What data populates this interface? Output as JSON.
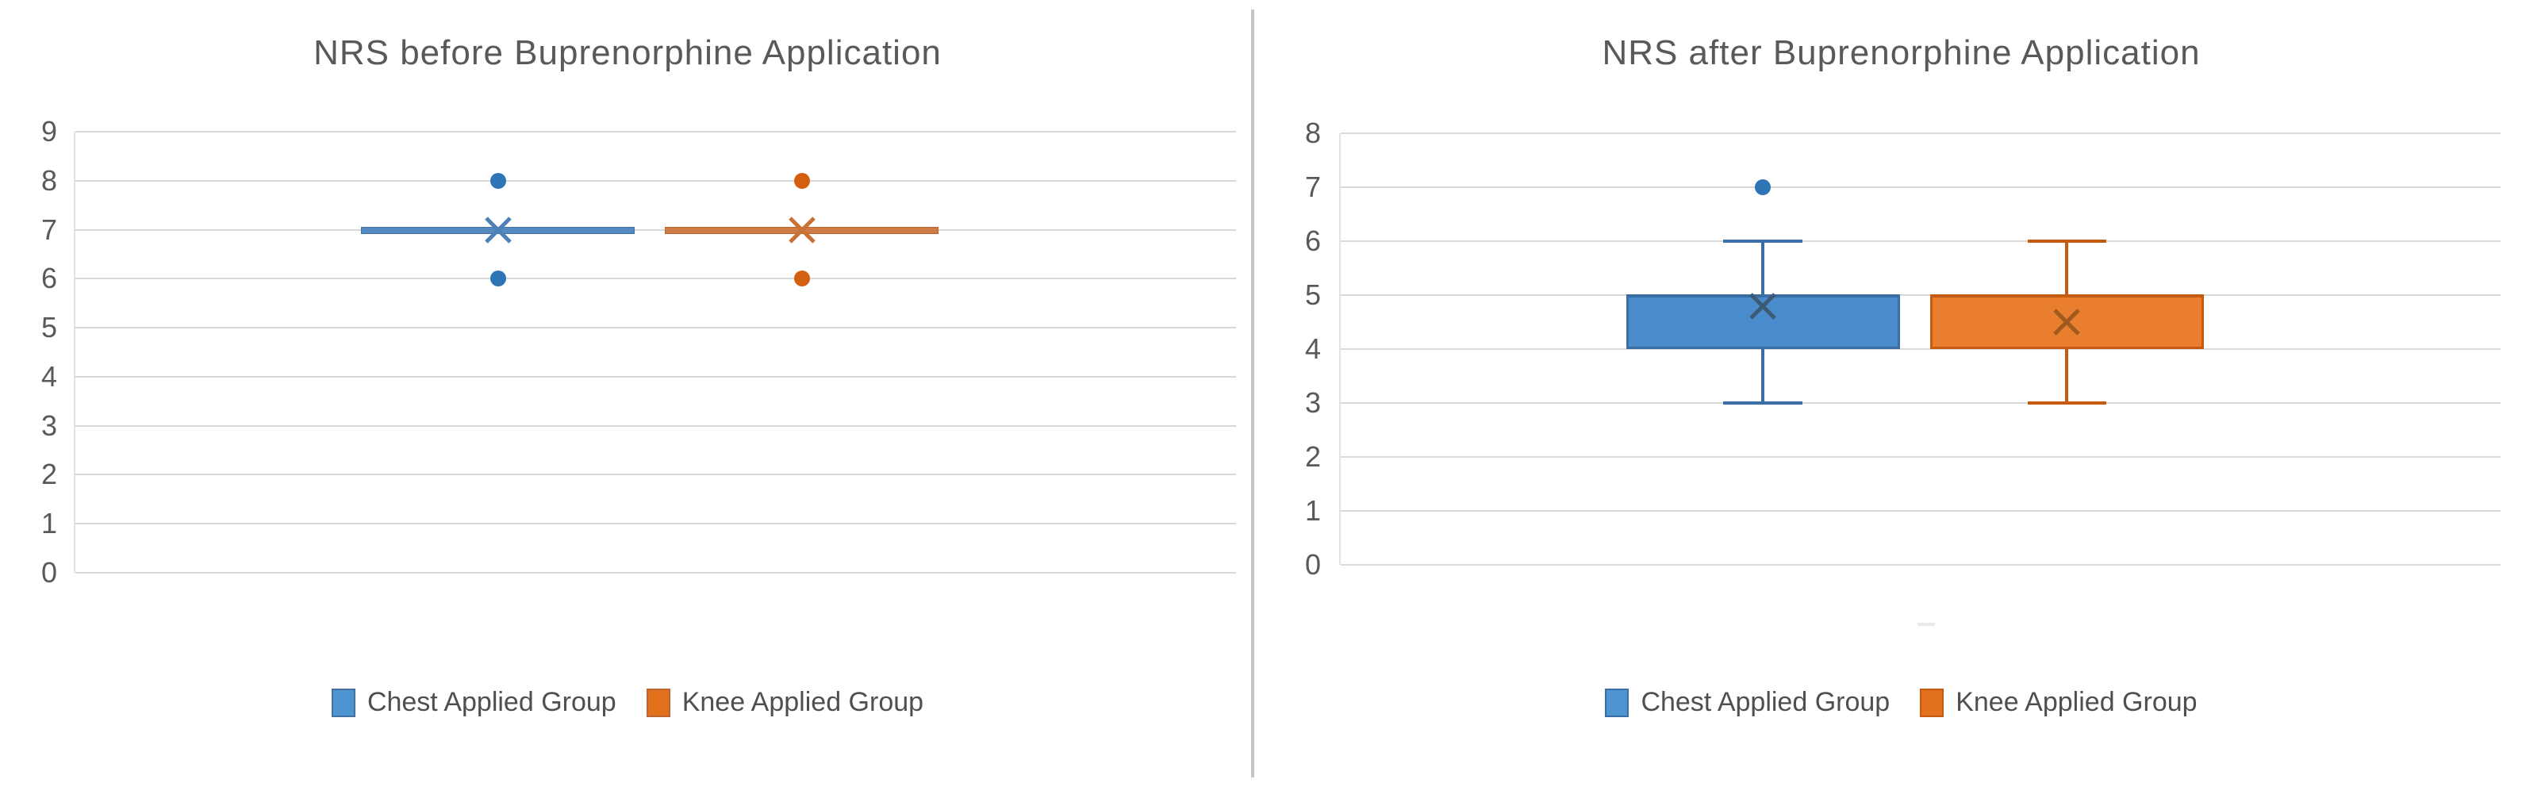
{
  "figure": {
    "background": "#ffffff",
    "divider_color": "#c6c6c6",
    "gridline_color": "#d9d9d9",
    "title_color": "#595959",
    "tick_label_color": "#595959",
    "legend_label_color": "#4f4f4f"
  },
  "chart_data": [
    {
      "type": "boxplot",
      "title": "NRS before Buprenorphine Application",
      "xlabel": "",
      "ylabel": "",
      "ylim": [
        0,
        9
      ],
      "yticks": [
        9,
        8,
        7,
        6,
        5,
        4,
        3,
        2,
        1,
        0
      ],
      "grid": true,
      "legend_position": "bottom",
      "series": [
        {
          "name": "Chest Applied Group",
          "min": 7,
          "q1": 7,
          "median": 7,
          "q3": 7,
          "max": 7,
          "mean": 7,
          "outliers": [
            8,
            6
          ],
          "fill": "#548abf",
          "edge": "#41719c",
          "outlier_color": "#2e75b6",
          "mean_color": "#4d80b4",
          "swatch": "#4e94d0"
        },
        {
          "name": "Knee Applied Group",
          "min": 7,
          "q1": 7,
          "median": 7,
          "q3": 7,
          "max": 7,
          "mean": 7,
          "outliers": [
            8,
            6
          ],
          "fill": "#cd7a44",
          "edge": "#bf6430",
          "outlier_color": "#d45f10",
          "mean_color": "#c87137",
          "swatch": "#e2711e"
        }
      ]
    },
    {
      "type": "boxplot",
      "title": "NRS after Buprenorphine Application",
      "xlabel": "",
      "ylabel": "",
      "ylim": [
        0,
        8
      ],
      "yticks": [
        8,
        7,
        6,
        5,
        4,
        3,
        2,
        1,
        0
      ],
      "grid": true,
      "legend_position": "bottom",
      "category_tick_x_frac": 0.505,
      "series": [
        {
          "name": "Chest Applied Group",
          "min": 3,
          "q1": 4,
          "median": 5,
          "q3": 5,
          "max": 6,
          "mean": 4.8,
          "outliers": [
            7
          ],
          "fill": "#4a8ccb",
          "edge": "#3a6ea5",
          "outlier_color": "#2e75b6",
          "mean_color": "#3c5a76",
          "swatch": "#4e94d0"
        },
        {
          "name": "Knee Applied Group",
          "min": 3,
          "q1": 4,
          "median": 5,
          "q3": 5,
          "max": 6,
          "mean": 4.5,
          "outliers": [],
          "fill": "#e87e2e",
          "edge": "#c55a11",
          "outlier_color": "#d45f10",
          "mean_color": "#a05a20",
          "swatch": "#e2711e"
        }
      ]
    }
  ]
}
